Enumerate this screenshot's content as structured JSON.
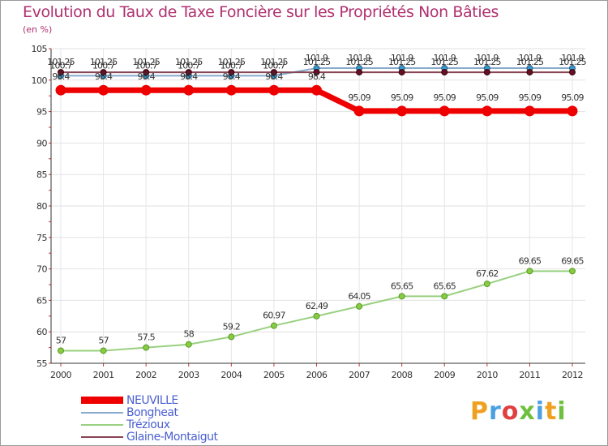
{
  "title": "Evolution du Taux de Taxe Foncière sur les Propriétés Non Bâties",
  "subtitle": "(en %)",
  "brand": {
    "letters": [
      "P",
      "r",
      "o",
      "x",
      "i",
      "t",
      "i"
    ],
    "colors": [
      "#f0a020",
      "#4aa0e0",
      "#e04040",
      "#70c040",
      "#4aa0e0",
      "#f0a020",
      "#70c040"
    ]
  },
  "chart_data": {
    "type": "line",
    "title": "Evolution du Taux de Taxe Foncière sur les Propriétés Non Bâties",
    "ylabel": "(en %)",
    "xlabel": "",
    "ylim": [
      55,
      105
    ],
    "yticks": [
      55,
      60,
      65,
      70,
      75,
      80,
      85,
      90,
      95,
      100,
      105
    ],
    "categories": [
      "2000",
      "2001",
      "2002",
      "2003",
      "2004",
      "2005",
      "2006",
      "2007",
      "2008",
      "2009",
      "2010",
      "2011",
      "2012"
    ],
    "series": [
      {
        "name": "NEUVILLE",
        "color": "#ee0000",
        "values": [
          98.4,
          98.4,
          98.4,
          98.4,
          98.4,
          98.4,
          98.4,
          95.09,
          95.09,
          95.09,
          95.09,
          95.09,
          95.09
        ],
        "labels": [
          "98.4",
          "98.4",
          "98.4",
          "98.4",
          "98.4",
          "98.4",
          "98.4",
          "95.09",
          "95.09",
          "95.09",
          "95.09",
          "95.09",
          "95.09"
        ]
      },
      {
        "name": "Bongheat",
        "color": "#88aacc",
        "values": [
          100.7,
          100.7,
          100.7,
          100.7,
          100.7,
          100.7,
          101.9,
          101.9,
          101.9,
          101.9,
          101.9,
          101.9,
          101.9
        ],
        "labels": [
          "100.7",
          "100.7",
          "100.7",
          "100.7",
          "100.7",
          "100.7",
          "101.9",
          "101.9",
          "101.9",
          "101.9",
          "101.9",
          "101.9",
          "101.9"
        ]
      },
      {
        "name": "Trézioux",
        "color": "#99d080",
        "values": [
          57,
          57,
          57.5,
          58,
          59.2,
          60.97,
          62.49,
          64.05,
          65.65,
          65.65,
          67.62,
          69.65,
          69.65
        ],
        "labels": [
          "57",
          "57",
          "57.5",
          "58",
          "59.2",
          "60.97",
          "62.49",
          "64.05",
          "65.65",
          "65.65",
          "67.62",
          "69.65",
          "69.65"
        ]
      },
      {
        "name": "Glaine-Montaigut",
        "color": "#884455",
        "values": [
          101.25,
          101.25,
          101.25,
          101.25,
          101.25,
          101.25,
          101.25,
          101.25,
          101.25,
          101.25,
          101.25,
          101.25,
          101.25
        ],
        "labels": [
          "101.25",
          "101.25",
          "101.25",
          "101.25",
          "101.25",
          "101.25",
          "101.25",
          "101.25",
          "101.25",
          "101.25",
          "101.25",
          "101.25",
          "101.25"
        ]
      }
    ]
  }
}
